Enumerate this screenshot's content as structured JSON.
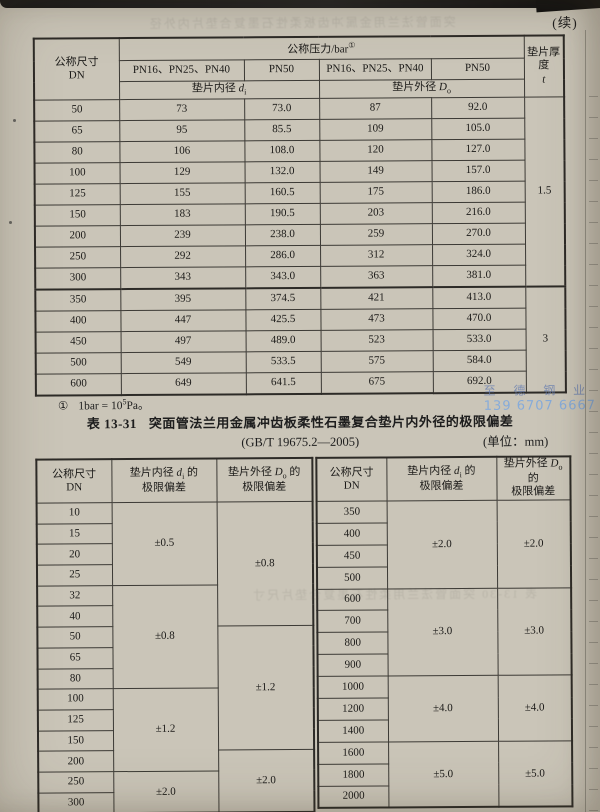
{
  "page": {
    "continued": "(续)",
    "ghost_top": "突面管法兰用金属冲齿板柔性石墨复合垫片内外径",
    "ghost_mid": "表 13-30 突面管法兰用柔性石墨复合垫片尺寸",
    "watermark": {
      "company": "至 德 钢 业",
      "phone": "139 6707 6667"
    }
  },
  "table1": {
    "header": {
      "dn_line1": "公称尺寸",
      "dn_line2": "DN",
      "pressure_label": "公称压力/bar",
      "pressure_sup": "①",
      "pn_multi": "PN16、PN25、PN40",
      "pn50": "PN50",
      "inner_prefix": "垫片内径 ",
      "inner_sym": "d",
      "inner_sub": "i",
      "outer_prefix": "垫片外径 ",
      "outer_sym": "D",
      "outer_sub": "o",
      "thickness_line1": "垫片厚度",
      "thickness_sym": "t"
    },
    "rows": [
      [
        "50",
        "73",
        "73.0",
        "87",
        "92.0"
      ],
      [
        "65",
        "95",
        "85.5",
        "109",
        "105.0"
      ],
      [
        "80",
        "106",
        "108.0",
        "120",
        "127.0"
      ],
      [
        "100",
        "129",
        "132.0",
        "149",
        "157.0"
      ],
      [
        "125",
        "155",
        "160.5",
        "175",
        "186.0"
      ],
      [
        "150",
        "183",
        "190.5",
        "203",
        "216.0"
      ],
      [
        "200",
        "239",
        "238.0",
        "259",
        "270.0"
      ],
      [
        "250",
        "292",
        "286.0",
        "312",
        "324.0"
      ],
      [
        "300",
        "343",
        "343.0",
        "363",
        "381.0"
      ],
      [
        "350",
        "395",
        "374.5",
        "421",
        "413.0"
      ],
      [
        "400",
        "447",
        "425.5",
        "473",
        "470.0"
      ],
      [
        "450",
        "497",
        "489.0",
        "523",
        "533.0"
      ],
      [
        "500",
        "549",
        "533.5",
        "575",
        "584.0"
      ],
      [
        "600",
        "649",
        "641.5",
        "675",
        "692.0"
      ]
    ],
    "thickness_groups": [
      {
        "span": 9,
        "value": "1.5"
      },
      {
        "span": 5,
        "value": "3"
      }
    ],
    "section_break_index": 9
  },
  "footnote": {
    "mark": "①",
    "text": "1bar = 10",
    "sup": "5",
    "tail": "Pa。"
  },
  "title": {
    "caption": "表 13-31",
    "main": "突面管法兰用金属冲齿板柔性石墨复合垫片内外径的极限偏差",
    "standard": "(GB/T 19675.2—2005)",
    "unit": "(单位：mm)"
  },
  "table2": {
    "header": {
      "dn_line1": "公称尺寸",
      "dn_line2": "DN",
      "inner_prefix": "垫片内径 ",
      "inner_sym": "d",
      "inner_sub": "i",
      "inner_tail": " 的",
      "outer_prefix": "垫片外径 ",
      "outer_sym": "D",
      "outer_sub": "o",
      "outer_tail": " 的",
      "line2": "极限偏差"
    },
    "left": {
      "dn": [
        "10",
        "15",
        "20",
        "25",
        "32",
        "40",
        "50",
        "65",
        "80",
        "100",
        "125",
        "150",
        "200",
        "250",
        "300"
      ],
      "inner_groups": [
        {
          "span": 4,
          "value": "±0.5"
        },
        {
          "span": 5,
          "value": "±0.8"
        },
        {
          "span": 4,
          "value": "±1.2"
        },
        {
          "span": 2,
          "value": "±2.0"
        }
      ],
      "outer_groups": [
        {
          "span": 6,
          "value": "±0.8"
        },
        {
          "span": 6,
          "value": "±1.2"
        },
        {
          "span": 3,
          "value": "±2.0"
        }
      ]
    },
    "right": {
      "dn": [
        "350",
        "400",
        "450",
        "500",
        "600",
        "700",
        "800",
        "900",
        "1000",
        "1200",
        "1400",
        "1600",
        "1800",
        "2000"
      ],
      "inner_groups": [
        {
          "span": 4,
          "value": "±2.0"
        },
        {
          "span": 4,
          "value": "±3.0"
        },
        {
          "span": 3,
          "value": "±4.0"
        },
        {
          "span": 3,
          "value": "±5.0"
        }
      ],
      "outer_groups": [
        {
          "span": 4,
          "value": "±2.0"
        },
        {
          "span": 4,
          "value": "±3.0"
        },
        {
          "span": 3,
          "value": "±4.0"
        },
        {
          "span": 3,
          "value": "±5.0"
        }
      ]
    }
  }
}
